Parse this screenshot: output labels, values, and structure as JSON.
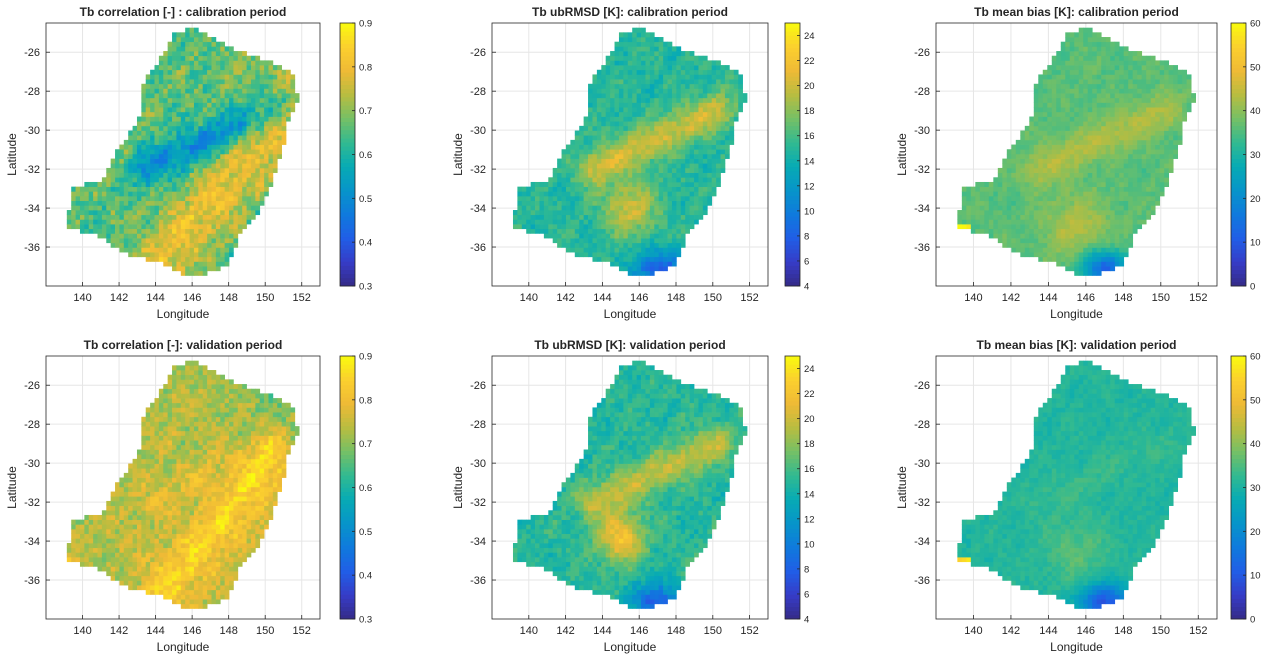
{
  "chart_data": [
    {
      "type": "heatmap",
      "title": "Tb correlation [-] : calibration period",
      "xlabel": "Longitude",
      "ylabel": "Latitude",
      "xlim": [
        138,
        153
      ],
      "ylim": [
        -38,
        -24.5
      ],
      "xticks": [
        "140",
        "142",
        "144",
        "146",
        "148",
        "150",
        "152"
      ],
      "yticks": [
        "-26",
        "-28",
        "-30",
        "-32",
        "-34",
        "-36"
      ],
      "clim": [
        0.3,
        0.9
      ],
      "cticks": [
        "0.3",
        "0.4",
        "0.5",
        "0.6",
        "0.7",
        "0.8",
        "0.9"
      ],
      "colormap": "parula",
      "grid": true,
      "colorbar": "right",
      "pattern": {
        "base": 0.66,
        "ridge_amp": -0.16,
        "south_amp": 0.14,
        "east_amp": 0.06,
        "hot_amp": 0.0,
        "hot_lon": 145.2,
        "hot_lat": -34.0,
        "hot_r": 1.0,
        "nsa_amp": 0.0,
        "west_tip": 0.0,
        "noise": 0.06
      }
    },
    {
      "type": "heatmap",
      "title": "Tb ubRMSD [K]: calibration period",
      "xlabel": "Longitude",
      "ylabel": "Latitude",
      "xlim": [
        138,
        153
      ],
      "ylim": [
        -38,
        -24.5
      ],
      "xticks": [
        "140",
        "142",
        "144",
        "146",
        "148",
        "150",
        "152"
      ],
      "yticks": [
        "-26",
        "-28",
        "-30",
        "-32",
        "-34",
        "-36"
      ],
      "clim": [
        4,
        25
      ],
      "cticks": [
        "4",
        "6",
        "8",
        "10",
        "12",
        "14",
        "16",
        "18",
        "20",
        "22",
        "24"
      ],
      "colormap": "parula",
      "grid": true,
      "colorbar": "right",
      "pattern": {
        "base": 15.0,
        "ridge_amp": 5.0,
        "south_amp": 0.0,
        "east_amp": 0.0,
        "hot_amp": 5.0,
        "hot_lon": 145.5,
        "hot_lat": -34.0,
        "hot_r": 1.0,
        "nsa_amp": -7.5,
        "west_tip": 0.0,
        "noise": 1.2
      }
    },
    {
      "type": "heatmap",
      "title": "Tb mean bias [K]: calibration period",
      "xlabel": "Longitude",
      "ylabel": "Latitude",
      "xlim": [
        138,
        153
      ],
      "ylim": [
        -38,
        -24.5
      ],
      "xticks": [
        "140",
        "142",
        "144",
        "146",
        "148",
        "150",
        "152"
      ],
      "yticks": [
        "-26",
        "-28",
        "-30",
        "-32",
        "-34",
        "-36"
      ],
      "clim": [
        0,
        60
      ],
      "cticks": [
        "0",
        "10",
        "20",
        "30",
        "40",
        "50",
        "60"
      ],
      "colormap": "parula",
      "grid": true,
      "colorbar": "right",
      "pattern": {
        "base": 36.0,
        "ridge_amp": 7.0,
        "south_amp": 0.0,
        "east_amp": 0.0,
        "hot_amp": 7.0,
        "hot_lon": 145.5,
        "hot_lat": -35.0,
        "hot_r": 1.2,
        "nsa_amp": -24.0,
        "west_tip": 22.0,
        "noise": 2.0
      }
    },
    {
      "type": "heatmap",
      "title": "Tb correlation [-]: validation period",
      "xlabel": "Longitude",
      "ylabel": "Latitude",
      "xlim": [
        138,
        153
      ],
      "ylim": [
        -38,
        -24.5
      ],
      "xticks": [
        "140",
        "142",
        "144",
        "146",
        "148",
        "150",
        "152"
      ],
      "yticks": [
        "-26",
        "-28",
        "-30",
        "-32",
        "-34",
        "-36"
      ],
      "clim": [
        0.3,
        0.9
      ],
      "cticks": [
        "0.3",
        "0.4",
        "0.5",
        "0.6",
        "0.7",
        "0.8",
        "0.9"
      ],
      "colormap": "parula",
      "grid": true,
      "colorbar": "right",
      "pattern": {
        "base": 0.73,
        "ridge_amp": 0.04,
        "south_amp": 0.11,
        "east_amp": -0.06,
        "hot_amp": 0.0,
        "hot_lon": 145.2,
        "hot_lat": -34.0,
        "hot_r": 1.0,
        "nsa_amp": 0.0,
        "west_tip": 0.07,
        "noise": 0.05
      }
    },
    {
      "type": "heatmap",
      "title": "Tb ubRMSD [K]: validation period",
      "xlabel": "Longitude",
      "ylabel": "Latitude",
      "xlim": [
        138,
        153
      ],
      "ylim": [
        -38,
        -24.5
      ],
      "xticks": [
        "140",
        "142",
        "144",
        "146",
        "148",
        "150",
        "152"
      ],
      "yticks": [
        "-26",
        "-28",
        "-30",
        "-32",
        "-34",
        "-36"
      ],
      "clim": [
        4,
        25
      ],
      "cticks": [
        "4",
        "6",
        "8",
        "10",
        "12",
        "14",
        "16",
        "18",
        "20",
        "22",
        "24"
      ],
      "colormap": "parula",
      "grid": true,
      "colorbar": "right",
      "pattern": {
        "base": 15.0,
        "ridge_amp": 4.5,
        "south_amp": 0.0,
        "east_amp": 0.0,
        "hot_amp": 7.0,
        "hot_lon": 145.0,
        "hot_lat": -33.8,
        "hot_r": 0.9,
        "nsa_amp": -7.5,
        "west_tip": 0.0,
        "noise": 1.2
      }
    },
    {
      "type": "heatmap",
      "title": "Tb mean bias [K]: validation period",
      "xlabel": "Longitude",
      "ylabel": "Latitude",
      "xlim": [
        138,
        153
      ],
      "ylim": [
        -38,
        -24.5
      ],
      "xticks": [
        "140",
        "142",
        "144",
        "146",
        "148",
        "150",
        "152"
      ],
      "yticks": [
        "-26",
        "-28",
        "-30",
        "-32",
        "-34",
        "-36"
      ],
      "clim": [
        0,
        60
      ],
      "cticks": [
        "0",
        "10",
        "20",
        "30",
        "40",
        "50",
        "60"
      ],
      "colormap": "parula",
      "grid": true,
      "colorbar": "right",
      "pattern": {
        "base": 31.0,
        "ridge_amp": 2.0,
        "south_amp": 0.0,
        "east_amp": 0.0,
        "hot_amp": 5.0,
        "hot_lon": 145.5,
        "hot_lat": -34.5,
        "hot_r": 1.2,
        "nsa_amp": -22.0,
        "west_tip": 25.0,
        "noise": 1.8
      }
    }
  ]
}
